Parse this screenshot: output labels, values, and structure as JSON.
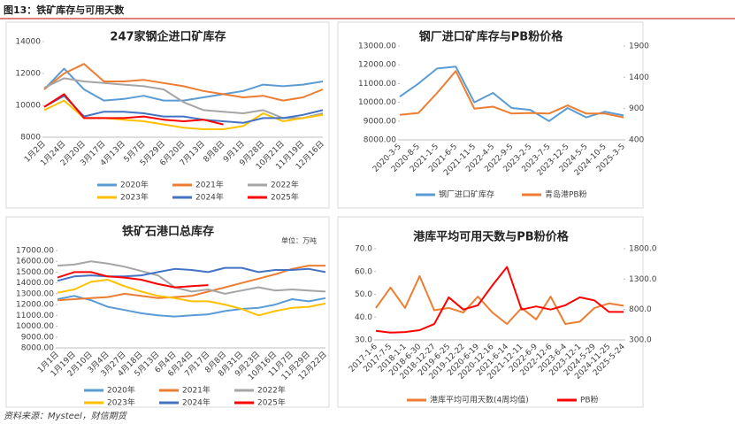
{
  "header": {
    "title": "图13：铁矿库存与可用天数"
  },
  "footer": {
    "source": "资料来源：Mysteel，财信期货"
  },
  "chart_data": [
    {
      "type": "line",
      "title": "247家钢企进口矿库存",
      "categories": [
        "1月2日",
        "1月24日",
        "2月20日",
        "3月17日",
        "4月13日",
        "5月7日",
        "5月29日",
        "6月20日",
        "7月13日",
        "8月8日",
        "9月1日",
        "9月28日",
        "10月21日",
        "11月19日",
        "12月16日"
      ],
      "ylim": [
        8000,
        14000
      ],
      "yticks": [
        8000,
        10000,
        12000,
        14000
      ],
      "legend": "bottom",
      "series": [
        {
          "name": "2020年",
          "color": "#5b9bd5",
          "values": [
            11000,
            12300,
            11000,
            10300,
            10400,
            10600,
            10300,
            10300,
            10500,
            10700,
            10900,
            11300,
            11200,
            11300,
            11500
          ]
        },
        {
          "name": "2021年",
          "color": "#ed7d31",
          "values": [
            11000,
            12000,
            12600,
            11500,
            11500,
            11600,
            11400,
            11200,
            10900,
            10700,
            10500,
            10600,
            10300,
            10500,
            11000
          ]
        },
        {
          "name": "2022年",
          "color": "#a5a5a5",
          "values": [
            11100,
            11700,
            11500,
            11400,
            11300,
            11200,
            11000,
            10200,
            9700,
            9600,
            9500,
            9700,
            9200,
            9200,
            9500
          ]
        },
        {
          "name": "2023年",
          "color": "#ffc000",
          "values": [
            9700,
            10300,
            9200,
            9200,
            9100,
            9000,
            8800,
            8600,
            8500,
            8500,
            8700,
            9500,
            9000,
            9200,
            9400
          ]
        },
        {
          "name": "2024年",
          "color": "#4472c4",
          "values": [
            9900,
            10600,
            9300,
            9600,
            9600,
            9500,
            9300,
            9300,
            9100,
            9000,
            8900,
            9200,
            9200,
            9400,
            9700
          ]
        },
        {
          "name": "2025年",
          "color": "#ff0000",
          "values": [
            9900,
            10700,
            9200,
            9200,
            9200,
            9300,
            9100,
            9000,
            9100,
            8800,
            null,
            null,
            null,
            null,
            null
          ]
        }
      ]
    },
    {
      "type": "line",
      "title": "钢厂进口矿库存与PB粉价格",
      "categories": [
        "2020-3-5",
        "2020-8-5",
        "2021-1-5",
        "2021-6-5",
        "2021-11-5",
        "2022-4-5",
        "2022-9-5",
        "2023-2-5",
        "2023-7-5",
        "2023-12-5",
        "2024-5-5",
        "2024-10-5",
        "2025-3-5"
      ],
      "ylim": [
        8000,
        13000
      ],
      "yticks": [
        {
          "value": 8000,
          "label": "8000.00"
        },
        {
          "value": 9000,
          "label": "9000.00"
        },
        {
          "value": 10000,
          "label": "10000.00"
        },
        {
          "value": 11000,
          "label": "11000.00"
        },
        {
          "value": 12000,
          "label": "12000.00"
        },
        {
          "value": 13000,
          "label": "13000.00"
        }
      ],
      "y2lim": [
        400,
        1900
      ],
      "y2ticks": [
        400,
        900,
        1400,
        1900
      ],
      "legend": "bottom",
      "series": [
        {
          "name": "钢厂进口矿库存",
          "color": "#5b9bd5",
          "values": [
            10300,
            11000,
            11800,
            11900,
            10000,
            10500,
            9700,
            9600,
            9000,
            9700,
            9200,
            9500,
            9300
          ]
        },
        {
          "name": "青岛港PB粉",
          "color": "#ed7d31",
          "axis": "y2",
          "values": [
            800,
            830,
            1150,
            1500,
            900,
            930,
            820,
            830,
            820,
            950,
            820,
            820,
            760
          ]
        }
      ]
    },
    {
      "type": "line",
      "title": "铁矿石港口总库存",
      "subtitle": "单位：万吨",
      "categories": [
        "1月1日",
        "1月19日",
        "2月10日",
        "3月4日",
        "3月27日",
        "4月18日",
        "5月13日",
        "6月4日",
        "6月24日",
        "7月17日",
        "8月8日",
        "8月31日",
        "9月23日",
        "10月16日",
        "11月7日",
        "11月29日",
        "12月22日"
      ],
      "ylim": [
        8000,
        17000
      ],
      "yticks": [
        {
          "value": 8000,
          "label": "8000.00"
        },
        {
          "value": 9000,
          "label": "9000.00"
        },
        {
          "value": 10000,
          "label": "10000.00"
        },
        {
          "value": 11000,
          "label": "11000.00"
        },
        {
          "value": 12000,
          "label": "12000.00"
        },
        {
          "value": 13000,
          "label": "13000.00"
        },
        {
          "value": 14000,
          "label": "14000.00"
        },
        {
          "value": 15000,
          "label": "15000.00"
        },
        {
          "value": 16000,
          "label": "16000.00"
        },
        {
          "value": 17000,
          "label": "17000.00"
        }
      ],
      "legend": "bottom",
      "series": [
        {
          "name": "2020年",
          "color": "#5b9bd5",
          "values": [
            12500,
            12800,
            12400,
            11800,
            11500,
            11200,
            11000,
            10900,
            11000,
            11100,
            11400,
            11600,
            11700,
            12000,
            12500,
            12300,
            12600
          ]
        },
        {
          "name": "2021年",
          "color": "#ed7d31",
          "values": [
            12400,
            12500,
            12600,
            12700,
            13000,
            12800,
            12600,
            12700,
            12800,
            13200,
            13600,
            14000,
            14400,
            14800,
            15300,
            15600,
            15600
          ]
        },
        {
          "name": "2022年",
          "color": "#a5a5a5",
          "values": [
            15600,
            15700,
            16000,
            15800,
            15500,
            15100,
            14700,
            13600,
            13200,
            13400,
            13000,
            13300,
            13600,
            13300,
            13400,
            13300,
            13200
          ]
        },
        {
          "name": "2023年",
          "color": "#ffc000",
          "values": [
            13100,
            13400,
            14100,
            14300,
            13700,
            13200,
            12800,
            12600,
            12300,
            12300,
            12000,
            11600,
            11000,
            11400,
            11700,
            11800,
            12100
          ]
        },
        {
          "name": "2024年",
          "color": "#4472c4",
          "values": [
            14200,
            14600,
            14700,
            14600,
            14600,
            14700,
            15000,
            15300,
            15200,
            15000,
            15400,
            15400,
            15000,
            15200,
            15200,
            15300,
            15000
          ]
        },
        {
          "name": "2025年",
          "color": "#ff0000",
          "values": [
            14500,
            15000,
            15000,
            14600,
            14500,
            14300,
            13900,
            13600,
            13700,
            13800,
            null,
            null,
            null,
            null,
            null,
            null,
            null
          ]
        }
      ]
    },
    {
      "type": "line",
      "title": "港库平均可用天数与PB粉价格",
      "categories": [
        "2017-1-6",
        "2017-7-5",
        "2018-1-1",
        "2018-6-30",
        "2018-12-27",
        "2019-6-25",
        "2019-12-22",
        "2020-6-19",
        "2020-12-16",
        "2021-6-14",
        "2021-12-11",
        "2022-6-9",
        "2022-12-6",
        "2023-6-4",
        "2023-12-1",
        "2024-5-29",
        "2024-11-25",
        "2025-5-24"
      ],
      "ylim": [
        30,
        70
      ],
      "yticks": [
        {
          "value": 30,
          "label": "30.0"
        },
        {
          "value": 40,
          "label": "40.0"
        },
        {
          "value": 50,
          "label": "50.0"
        },
        {
          "value": 60,
          "label": "60.0"
        },
        {
          "value": 70,
          "label": "70.0"
        }
      ],
      "y2lim": [
        300,
        1800
      ],
      "y2ticks": [
        {
          "value": 300,
          "label": "300.0"
        },
        {
          "value": 800,
          "label": "800.0"
        },
        {
          "value": 1300,
          "label": "1300.0"
        },
        {
          "value": 1800,
          "label": "1800.0"
        }
      ],
      "legend": "bottom",
      "series": [
        {
          "name": "港库平均可用天数(4周均值)",
          "color": "#ed7d31",
          "values": [
            44,
            53,
            44,
            58,
            43,
            44,
            42,
            49,
            42,
            37,
            44,
            39,
            49,
            37,
            38,
            44,
            46,
            45
          ]
        },
        {
          "name": "PB粉",
          "color": "#ff0000",
          "axis": "y2",
          "values": [
            450,
            420,
            430,
            460,
            560,
            1000,
            800,
            870,
            1200,
            1500,
            800,
            850,
            800,
            870,
            1000,
            950,
            760,
            760
          ]
        }
      ]
    }
  ]
}
